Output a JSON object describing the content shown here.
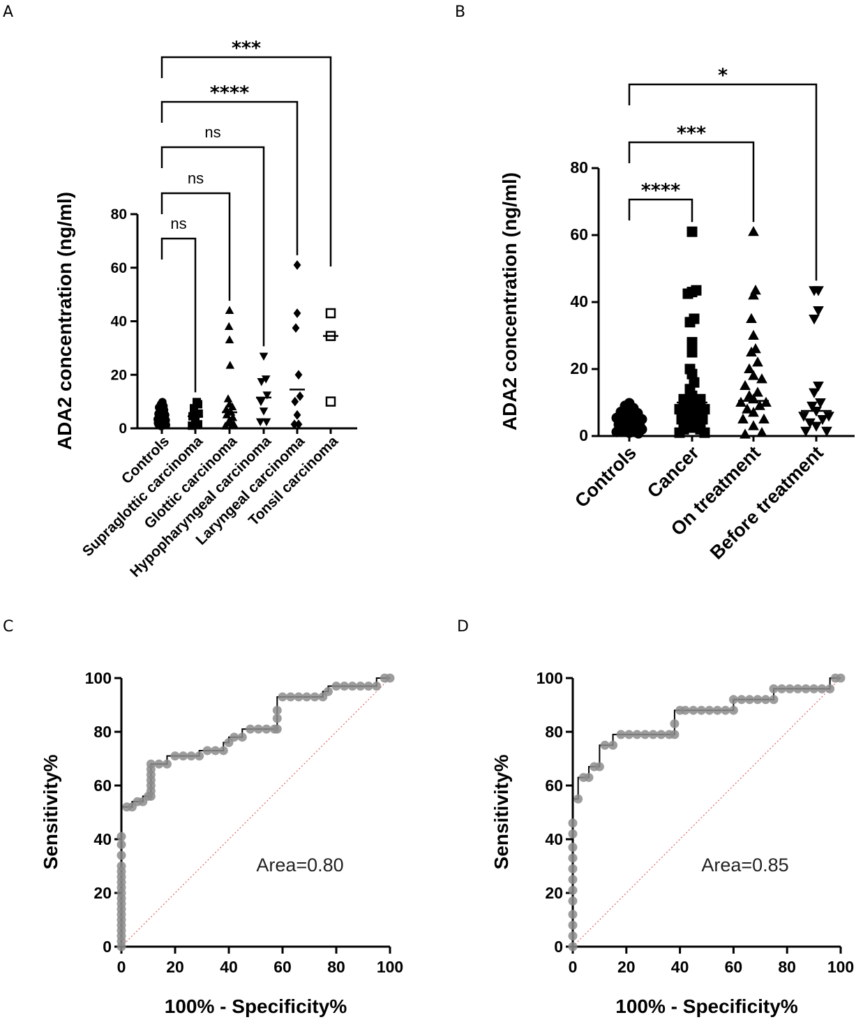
{
  "chart_data": [
    {
      "panel": "A",
      "type": "scatter",
      "title": "",
      "ylabel": "ADA2 concentration (ng/ml)",
      "xlabel": "",
      "ylim": [
        0,
        80
      ],
      "yticks": [
        0,
        20,
        40,
        60,
        80
      ],
      "categories": [
        "Controls",
        "Supraglottic carcinoma",
        "Glottic carcinoma",
        "Hypopharyngeal carcinoma",
        "Laryngeal carcinoma",
        "Tonsil carcinoma"
      ],
      "marker_types": [
        "circle",
        "square",
        "triangle",
        "triangle-down",
        "diamond",
        "open-square"
      ],
      "means": [
        3.5,
        4.5,
        6,
        11.5,
        14.5,
        34.5
      ],
      "series": [
        {
          "name": "Controls",
          "points": [
            [
              0,
              1
            ],
            [
              -0.12,
              1.5
            ],
            [
              0.1,
              1.8
            ],
            [
              0.05,
              2.2
            ],
            [
              -0.08,
              2.6
            ],
            [
              0.14,
              3
            ],
            [
              -0.15,
              3.4
            ],
            [
              0,
              3.8
            ],
            [
              0.09,
              4.2
            ],
            [
              -0.05,
              4.6
            ],
            [
              0.12,
              5
            ],
            [
              -0.12,
              5.4
            ],
            [
              0.03,
              5.8
            ],
            [
              -0.07,
              6.3
            ],
            [
              0.08,
              6.8
            ],
            [
              0,
              7.2
            ],
            [
              -0.1,
              7.8
            ],
            [
              0.06,
              8.3
            ],
            [
              -0.03,
              9
            ],
            [
              0.02,
              9.8
            ],
            [
              -0.14,
              2
            ],
            [
              0.15,
              1.2
            ],
            [
              -0.02,
              0.8
            ],
            [
              0.11,
              3.6
            ],
            [
              -0.09,
              4.8
            ]
          ]
        },
        {
          "name": "Supraglottic carcinoma",
          "points": [
            [
              -0.12,
              1
            ],
            [
              0.1,
              1.5
            ],
            [
              0,
              3
            ],
            [
              -0.1,
              4.5
            ],
            [
              0.12,
              5.5
            ],
            [
              -0.05,
              7.5
            ],
            [
              0.1,
              9
            ],
            [
              0.05,
              9.8
            ]
          ]
        },
        {
          "name": "Glottic carcinoma",
          "points": [
            [
              -0.15,
              0.8
            ],
            [
              0.08,
              1
            ],
            [
              0.15,
              1.5
            ],
            [
              -0.05,
              2
            ],
            [
              0,
              3
            ],
            [
              0.12,
              4
            ],
            [
              -0.1,
              5
            ],
            [
              0.05,
              6
            ],
            [
              -0.12,
              7
            ],
            [
              0.1,
              8
            ],
            [
              0,
              9
            ],
            [
              -0.05,
              11
            ],
            [
              0.02,
              23.5
            ],
            [
              0,
              33
            ],
            [
              -0.02,
              38
            ],
            [
              0,
              44
            ]
          ]
        },
        {
          "name": "Hypopharyngeal carcinoma",
          "points": [
            [
              -0.12,
              2.5
            ],
            [
              0.1,
              2.5
            ],
            [
              0,
              6.5
            ],
            [
              -0.1,
              10
            ],
            [
              0.12,
              12.5
            ],
            [
              -0.08,
              17.5
            ],
            [
              0.08,
              18.5
            ],
            [
              0,
              27
            ]
          ]
        },
        {
          "name": "Laryngeal carcinoma",
          "points": [
            [
              -0.1,
              1.5
            ],
            [
              0.05,
              1.5
            ],
            [
              0,
              5
            ],
            [
              -0.08,
              10
            ],
            [
              0.1,
              12
            ],
            [
              0.05,
              20
            ],
            [
              -0.05,
              37.5
            ],
            [
              0,
              43
            ],
            [
              0,
              61
            ]
          ]
        },
        {
          "name": "Tonsil carcinoma",
          "points": [
            [
              0,
              10
            ],
            [
              0,
              34.5
            ],
            [
              0,
              43
            ]
          ]
        }
      ],
      "brackets": [
        {
          "from": "Controls",
          "to": "Supraglottic carcinoma",
          "label": "ns"
        },
        {
          "from": "Controls",
          "to": "Glottic carcinoma",
          "label": "ns"
        },
        {
          "from": "Controls",
          "to": "Hypopharyngeal carcinoma",
          "label": "ns"
        },
        {
          "from": "Controls",
          "to": "Laryngeal carcinoma",
          "label": "****"
        },
        {
          "from": "Controls",
          "to": "Tonsil carcinoma",
          "label": "***"
        }
      ]
    },
    {
      "panel": "B",
      "type": "scatter",
      "title": "",
      "ylabel": "ADA2 concentration (ng/ml)",
      "xlabel": "",
      "ylim": [
        0,
        80
      ],
      "yticks": [
        0,
        20,
        40,
        60,
        80
      ],
      "categories": [
        "Controls",
        "Cancer",
        "On treatment",
        "Before treatment"
      ],
      "marker_types": [
        "circle",
        "square",
        "triangle",
        "triangle-down"
      ],
      "means": [
        3.5,
        10,
        10.5,
        7.5
      ],
      "series": [
        {
          "name": "Controls",
          "points": [
            [
              0,
              1
            ],
            [
              -0.2,
              1.5
            ],
            [
              0.2,
              1.8
            ],
            [
              0.1,
              2.2
            ],
            [
              -0.1,
              2.6
            ],
            [
              0.25,
              3
            ],
            [
              -0.25,
              3.4
            ],
            [
              0,
              3.8
            ],
            [
              0.15,
              4.2
            ],
            [
              -0.15,
              4.6
            ],
            [
              0.3,
              5
            ],
            [
              -0.3,
              5.4
            ],
            [
              0.05,
              5.8
            ],
            [
              -0.05,
              6.3
            ],
            [
              0.2,
              6.8
            ],
            [
              -0.2,
              7.2
            ],
            [
              0,
              7.8
            ],
            [
              0.1,
              8.3
            ],
            [
              -0.1,
              9
            ],
            [
              0,
              9.8
            ],
            [
              0.3,
              2
            ],
            [
              -0.3,
              1.2
            ],
            [
              0.22,
              0.8
            ],
            [
              -0.22,
              3.6
            ],
            [
              0.12,
              4.8
            ]
          ]
        },
        {
          "name": "Cancer",
          "points": [
            [
              -0.3,
              1
            ],
            [
              0.3,
              1
            ],
            [
              -0.2,
              2
            ],
            [
              0.2,
              2
            ],
            [
              0,
              2.5
            ],
            [
              -0.1,
              4
            ],
            [
              0.1,
              4
            ],
            [
              -0.25,
              5
            ],
            [
              0.25,
              5
            ],
            [
              0,
              6
            ],
            [
              -0.15,
              7
            ],
            [
              0.15,
              7
            ],
            [
              -0.3,
              8
            ],
            [
              0.3,
              8
            ],
            [
              0,
              9
            ],
            [
              -0.1,
              10
            ],
            [
              0.1,
              10
            ],
            [
              -0.2,
              11
            ],
            [
              0.2,
              11
            ],
            [
              0,
              12
            ],
            [
              -0.05,
              14
            ],
            [
              0.05,
              16
            ],
            [
              0,
              18.5
            ],
            [
              -0.05,
              20
            ],
            [
              0,
              25
            ],
            [
              0,
              28
            ],
            [
              -0.05,
              34
            ],
            [
              0.05,
              35
            ],
            [
              -0.1,
              42.5
            ],
            [
              0,
              43
            ],
            [
              0.1,
              43.5
            ],
            [
              0,
              61
            ]
          ]
        },
        {
          "name": "On treatment",
          "points": [
            [
              -0.2,
              0.5
            ],
            [
              0.2,
              1
            ],
            [
              0,
              3
            ],
            [
              -0.25,
              5
            ],
            [
              0.25,
              5
            ],
            [
              0,
              7
            ],
            [
              -0.15,
              8
            ],
            [
              0.15,
              9
            ],
            [
              -0.3,
              10
            ],
            [
              0.3,
              10
            ],
            [
              0,
              11
            ],
            [
              -0.1,
              12
            ],
            [
              0.1,
              13
            ],
            [
              -0.2,
              15
            ],
            [
              0.2,
              17
            ],
            [
              0,
              18
            ],
            [
              -0.1,
              20
            ],
            [
              0.1,
              22
            ],
            [
              -0.05,
              25
            ],
            [
              0.05,
              26
            ],
            [
              0,
              30
            ],
            [
              -0.05,
              35
            ],
            [
              0,
              42
            ],
            [
              0.05,
              43.5
            ],
            [
              0,
              61
            ]
          ]
        },
        {
          "name": "Before treatment",
          "points": [
            [
              -0.25,
              1.5
            ],
            [
              0.25,
              1.5
            ],
            [
              0,
              3
            ],
            [
              -0.15,
              4
            ],
            [
              0.15,
              5
            ],
            [
              -0.3,
              6
            ],
            [
              0.3,
              6
            ],
            [
              0,
              7.5
            ],
            [
              -0.1,
              9
            ],
            [
              0.1,
              10
            ],
            [
              -0.05,
              13
            ],
            [
              0.05,
              15
            ],
            [
              -0.05,
              35
            ],
            [
              0.05,
              37.5
            ],
            [
              -0.05,
              43.5
            ],
            [
              0.05,
              43.5
            ]
          ]
        }
      ],
      "brackets": [
        {
          "from": "Controls",
          "to": "Cancer",
          "label": "****"
        },
        {
          "from": "Controls",
          "to": "On treatment",
          "label": "***"
        },
        {
          "from": "Controls",
          "to": "Before treatment",
          "label": "*"
        }
      ]
    },
    {
      "panel": "C",
      "type": "line",
      "title": "",
      "xlabel": "100% - Specificity%",
      "ylabel": "Sensitivity%",
      "xlim": [
        0,
        100
      ],
      "ylim": [
        0,
        100
      ],
      "xticks": [
        0,
        20,
        40,
        60,
        80,
        100
      ],
      "yticks": [
        0,
        20,
        40,
        60,
        80,
        100
      ],
      "annotation": "Area=0.80",
      "reference_line": [
        [
          0,
          0
        ],
        [
          100,
          100
        ]
      ],
      "series": [
        {
          "name": "ROC",
          "x": [
            0,
            0,
            0,
            0,
            0,
            0,
            0,
            0,
            0,
            0,
            0,
            0,
            0,
            0,
            0,
            0,
            0,
            0,
            0,
            2,
            4,
            6,
            8,
            10,
            11,
            11,
            11,
            11,
            11,
            11,
            11,
            14,
            17,
            20,
            23,
            26,
            29,
            32,
            35,
            38,
            40,
            42,
            45,
            48,
            51,
            54,
            57,
            58,
            58,
            58,
            60,
            63,
            66,
            69,
            72,
            75,
            77,
            80,
            83,
            86,
            89,
            92,
            95,
            98,
            100
          ],
          "y": [
            0,
            2,
            4,
            6,
            8,
            10,
            12,
            14,
            16,
            18,
            20,
            22,
            24,
            26,
            28,
            30,
            34,
            38,
            41,
            52,
            52,
            54,
            54,
            56,
            56,
            58,
            60,
            62,
            64,
            66,
            68,
            68,
            68,
            71,
            71,
            71,
            71,
            73,
            73,
            73,
            76,
            78,
            78,
            81,
            81,
            81,
            81,
            81,
            85,
            88,
            93,
            93,
            93,
            93,
            93,
            93,
            95,
            97,
            97,
            97,
            97,
            97,
            97,
            100,
            100
          ]
        }
      ]
    },
    {
      "panel": "D",
      "type": "line",
      "title": "",
      "xlabel": "100% - Specificity%",
      "ylabel": "Sensitivity%",
      "xlim": [
        0,
        100
      ],
      "ylim": [
        0,
        100
      ],
      "xticks": [
        0,
        20,
        40,
        60,
        80,
        100
      ],
      "yticks": [
        0,
        20,
        40,
        60,
        80,
        100
      ],
      "annotation": "Area=0.85",
      "reference_line": [
        [
          0,
          0
        ],
        [
          100,
          100
        ]
      ],
      "series": [
        {
          "name": "ROC",
          "x": [
            0,
            0,
            0,
            0,
            0,
            0,
            0,
            0,
            0,
            0,
            0,
            0,
            2,
            4,
            6,
            8,
            10,
            12,
            15,
            18,
            21,
            24,
            27,
            30,
            33,
            36,
            38,
            38,
            40,
            42,
            45,
            48,
            51,
            54,
            57,
            60,
            60,
            63,
            66,
            69,
            72,
            75,
            75,
            78,
            81,
            84,
            87,
            90,
            93,
            96,
            98,
            100
          ],
          "y": [
            0,
            4,
            8,
            12,
            17,
            21,
            25,
            29,
            33,
            37,
            42,
            46,
            55,
            63,
            63,
            67,
            67,
            75,
            75,
            79,
            79,
            79,
            79,
            79,
            79,
            79,
            79,
            83,
            88,
            88,
            88,
            88,
            88,
            88,
            88,
            88,
            92,
            92,
            92,
            92,
            92,
            92,
            96,
            96,
            96,
            96,
            96,
            96,
            96,
            96,
            100,
            100
          ]
        }
      ]
    }
  ]
}
